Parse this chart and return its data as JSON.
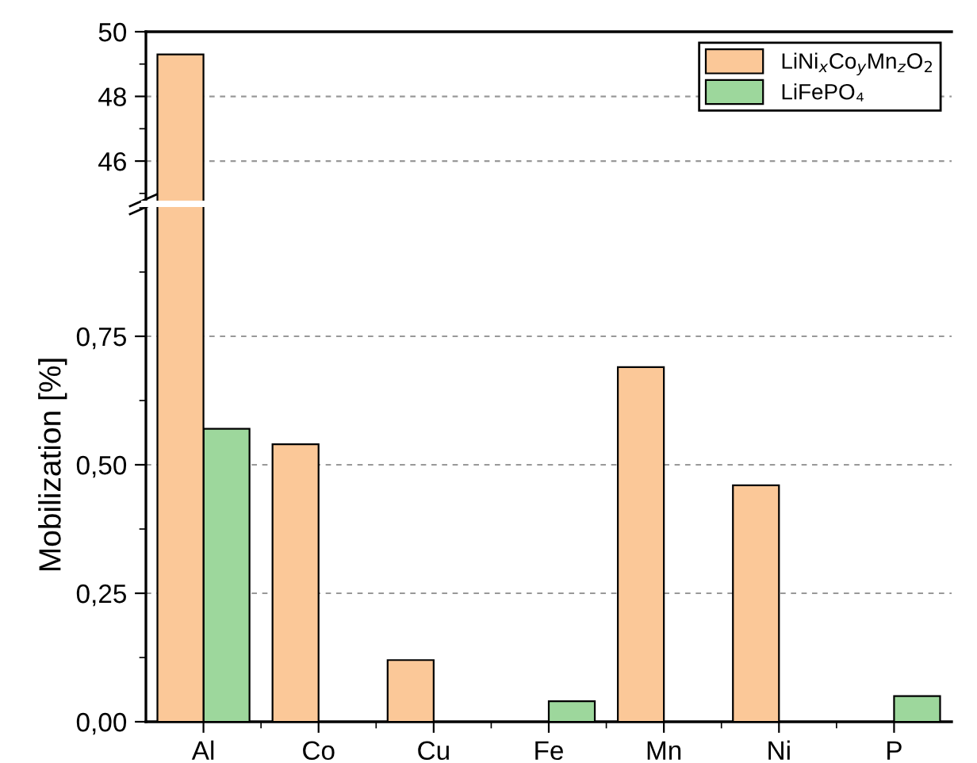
{
  "chart_data": [
    {
      "type": "bar",
      "categories": [
        null,
        null,
        null,
        null,
        null,
        null,
        null
      ],
      "series": [
        {
          "name": "LiNi$_{x}$Co$_{y}$Mn$_{z}$O$_{2}$",
          "color": "#fbc898",
          "values": [
            49.3,
            null,
            null,
            null,
            null,
            null,
            null
          ]
        },
        {
          "name": "LiFePO₄",
          "color": "#9dd79c",
          "values": [
            null,
            null,
            null,
            null,
            null,
            null,
            null
          ]
        }
      ],
      "ylim": [
        44.8,
        50
      ],
      "yticks": [
        46,
        48,
        50
      ],
      "grid": "y",
      "legend": "top right",
      "tick_labels": "y"
    },
    {
      "type": "bar",
      "categories": [
        "Al",
        "Co",
        "Cu",
        "Fe",
        "Mn",
        "Ni",
        "P"
      ],
      "series": [
        {
          "color": "#fbc898",
          "values": [
            null,
            0.54,
            0.12,
            null,
            0.69,
            0.46,
            null
          ]
        },
        {
          "color": "#9dd79c",
          "values": [
            0.57,
            null,
            null,
            0.04,
            null,
            null,
            0.05
          ]
        }
      ],
      "ylabel": "Mobilization [%]",
      "ylim": [
        0,
        1.0
      ],
      "yticks": [
        {
          "value": 0,
          "label": "0,00"
        },
        {
          "value": 0.25,
          "label": "0,25"
        },
        {
          "value": 0.5,
          "label": "0,50"
        },
        {
          "value": 0.75,
          "label": "0,75"
        }
      ],
      "grid": "y"
    }
  ]
}
